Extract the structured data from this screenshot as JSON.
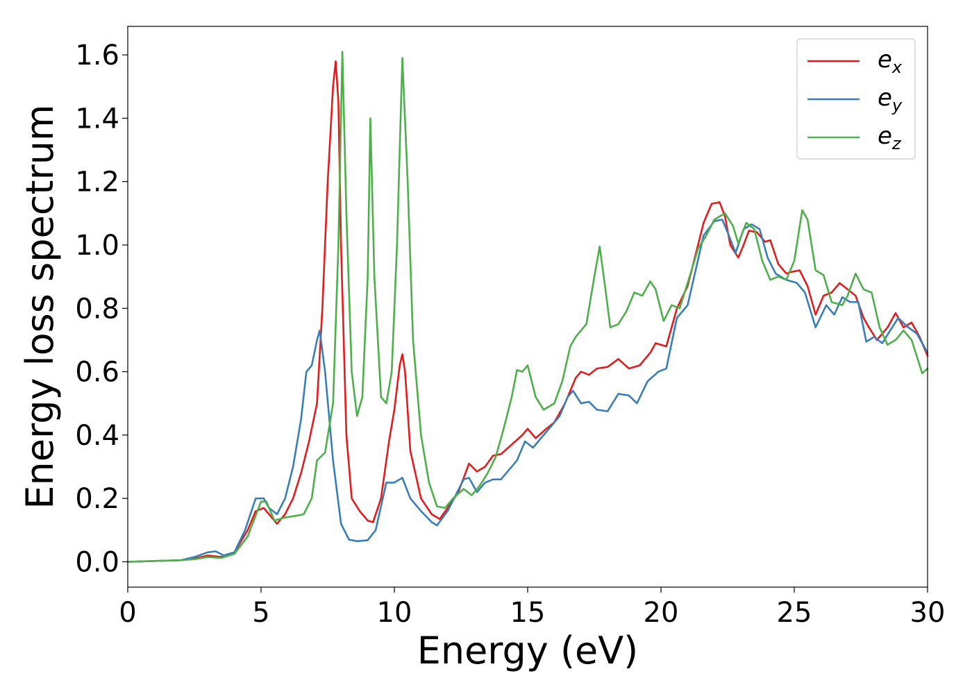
{
  "chart_data": {
    "type": "line",
    "title": "",
    "xlabel": "Energy (eV)",
    "ylabel": "Energy loss spectrum",
    "xlim": [
      0,
      30
    ],
    "ylim": [
      -0.08,
      1.69
    ],
    "xticks": [
      0,
      5,
      10,
      15,
      20,
      25,
      30
    ],
    "xtick_labels": [
      "0",
      "5",
      "10",
      "15",
      "20",
      "25",
      "30"
    ],
    "yticks": [
      0.0,
      0.2,
      0.4,
      0.6,
      0.8,
      1.0,
      1.2,
      1.4,
      1.6
    ],
    "ytick_labels": [
      "0.0",
      "0.2",
      "0.4",
      "0.6",
      "0.8",
      "1.0",
      "1.2",
      "1.4",
      "1.6"
    ],
    "grid": false,
    "legend_position": "top-right",
    "series": [
      {
        "name": "e_x",
        "legend_base": "e",
        "legend_sub": "x",
        "color": "#e41a1c",
        "points": [
          [
            0,
            0
          ],
          [
            2,
            0.005
          ],
          [
            2.5,
            0.01
          ],
          [
            3,
            0.02
          ],
          [
            3.5,
            0.015
          ],
          [
            4,
            0.03
          ],
          [
            4.5,
            0.1
          ],
          [
            4.8,
            0.16
          ],
          [
            5.1,
            0.17
          ],
          [
            5.3,
            0.15
          ],
          [
            5.6,
            0.12
          ],
          [
            5.9,
            0.15
          ],
          [
            6.2,
            0.2
          ],
          [
            6.5,
            0.28
          ],
          [
            6.8,
            0.38
          ],
          [
            7.1,
            0.5
          ],
          [
            7.3,
            0.8
          ],
          [
            7.5,
            1.2
          ],
          [
            7.7,
            1.5
          ],
          [
            7.8,
            1.58
          ],
          [
            7.9,
            1.45
          ],
          [
            8.0,
            1.0
          ],
          [
            8.2,
            0.4
          ],
          [
            8.4,
            0.2
          ],
          [
            8.7,
            0.16
          ],
          [
            9.0,
            0.13
          ],
          [
            9.2,
            0.125
          ],
          [
            9.5,
            0.2
          ],
          [
            9.8,
            0.38
          ],
          [
            10.0,
            0.48
          ],
          [
            10.2,
            0.62
          ],
          [
            10.3,
            0.655
          ],
          [
            10.4,
            0.6
          ],
          [
            10.6,
            0.35
          ],
          [
            11.0,
            0.2
          ],
          [
            11.4,
            0.15
          ],
          [
            11.7,
            0.135
          ],
          [
            12.0,
            0.17
          ],
          [
            12.4,
            0.22
          ],
          [
            12.8,
            0.31
          ],
          [
            13.1,
            0.285
          ],
          [
            13.4,
            0.3
          ],
          [
            13.7,
            0.335
          ],
          [
            14.0,
            0.34
          ],
          [
            14.4,
            0.37
          ],
          [
            14.8,
            0.4
          ],
          [
            15.0,
            0.42
          ],
          [
            15.3,
            0.39
          ],
          [
            15.7,
            0.42
          ],
          [
            16.0,
            0.44
          ],
          [
            16.4,
            0.5
          ],
          [
            16.8,
            0.58
          ],
          [
            17.0,
            0.6
          ],
          [
            17.3,
            0.59
          ],
          [
            17.6,
            0.61
          ],
          [
            18.0,
            0.615
          ],
          [
            18.4,
            0.64
          ],
          [
            18.8,
            0.61
          ],
          [
            19.2,
            0.62
          ],
          [
            19.6,
            0.66
          ],
          [
            19.8,
            0.69
          ],
          [
            20.2,
            0.68
          ],
          [
            20.6,
            0.8
          ],
          [
            21.0,
            0.87
          ],
          [
            21.3,
            0.97
          ],
          [
            21.6,
            1.07
          ],
          [
            21.9,
            1.13
          ],
          [
            22.2,
            1.135
          ],
          [
            22.4,
            1.09
          ],
          [
            22.6,
            1.0
          ],
          [
            22.9,
            0.96
          ],
          [
            23.1,
            1.0
          ],
          [
            23.3,
            1.045
          ],
          [
            23.6,
            1.04
          ],
          [
            23.9,
            1.01
          ],
          [
            24.1,
            1.015
          ],
          [
            24.4,
            0.94
          ],
          [
            24.7,
            0.91
          ],
          [
            24.9,
            0.915
          ],
          [
            25.2,
            0.92
          ],
          [
            25.5,
            0.87
          ],
          [
            25.8,
            0.78
          ],
          [
            26.1,
            0.84
          ],
          [
            26.4,
            0.85
          ],
          [
            26.7,
            0.88
          ],
          [
            27.0,
            0.86
          ],
          [
            27.3,
            0.84
          ],
          [
            27.6,
            0.77
          ],
          [
            27.8,
            0.74
          ],
          [
            28.1,
            0.7
          ],
          [
            28.5,
            0.74
          ],
          [
            28.8,
            0.785
          ],
          [
            29.1,
            0.74
          ],
          [
            29.4,
            0.755
          ],
          [
            29.7,
            0.71
          ],
          [
            30.0,
            0.65
          ]
        ]
      },
      {
        "name": "e_y",
        "legend_base": "e",
        "legend_sub": "y",
        "color": "#377eb8",
        "points": [
          [
            0,
            0
          ],
          [
            2,
            0.005
          ],
          [
            2.5,
            0.015
          ],
          [
            3.0,
            0.03
          ],
          [
            3.3,
            0.033
          ],
          [
            3.6,
            0.02
          ],
          [
            4.0,
            0.03
          ],
          [
            4.4,
            0.1
          ],
          [
            4.8,
            0.2
          ],
          [
            5.1,
            0.2
          ],
          [
            5.3,
            0.17
          ],
          [
            5.6,
            0.15
          ],
          [
            5.9,
            0.2
          ],
          [
            6.2,
            0.3
          ],
          [
            6.5,
            0.45
          ],
          [
            6.7,
            0.6
          ],
          [
            6.9,
            0.62
          ],
          [
            7.1,
            0.7
          ],
          [
            7.2,
            0.73
          ],
          [
            7.4,
            0.6
          ],
          [
            7.7,
            0.32
          ],
          [
            8.0,
            0.12
          ],
          [
            8.3,
            0.07
          ],
          [
            8.6,
            0.065
          ],
          [
            9.0,
            0.068
          ],
          [
            9.3,
            0.1
          ],
          [
            9.7,
            0.25
          ],
          [
            10.0,
            0.25
          ],
          [
            10.3,
            0.265
          ],
          [
            10.6,
            0.2
          ],
          [
            11.0,
            0.16
          ],
          [
            11.4,
            0.125
          ],
          [
            11.6,
            0.115
          ],
          [
            12.0,
            0.16
          ],
          [
            12.3,
            0.21
          ],
          [
            12.6,
            0.26
          ],
          [
            12.8,
            0.265
          ],
          [
            13.1,
            0.22
          ],
          [
            13.4,
            0.25
          ],
          [
            13.7,
            0.26
          ],
          [
            14.0,
            0.26
          ],
          [
            14.3,
            0.29
          ],
          [
            14.6,
            0.32
          ],
          [
            14.9,
            0.38
          ],
          [
            15.2,
            0.36
          ],
          [
            15.5,
            0.39
          ],
          [
            15.8,
            0.42
          ],
          [
            16.2,
            0.46
          ],
          [
            16.5,
            0.52
          ],
          [
            16.7,
            0.54
          ],
          [
            17.0,
            0.5
          ],
          [
            17.3,
            0.505
          ],
          [
            17.6,
            0.48
          ],
          [
            18.0,
            0.475
          ],
          [
            18.4,
            0.53
          ],
          [
            18.8,
            0.525
          ],
          [
            19.1,
            0.5
          ],
          [
            19.5,
            0.57
          ],
          [
            19.9,
            0.6
          ],
          [
            20.2,
            0.61
          ],
          [
            20.6,
            0.77
          ],
          [
            21.0,
            0.81
          ],
          [
            21.3,
            0.92
          ],
          [
            21.6,
            1.03
          ],
          [
            22.0,
            1.075
          ],
          [
            22.3,
            1.08
          ],
          [
            22.5,
            1.04
          ],
          [
            22.8,
            0.975
          ],
          [
            23.1,
            1.05
          ],
          [
            23.4,
            1.065
          ],
          [
            23.7,
            1.05
          ],
          [
            24.0,
            0.96
          ],
          [
            24.3,
            0.91
          ],
          [
            24.7,
            0.89
          ],
          [
            25.1,
            0.88
          ],
          [
            25.4,
            0.85
          ],
          [
            25.8,
            0.74
          ],
          [
            26.2,
            0.81
          ],
          [
            26.5,
            0.78
          ],
          [
            26.8,
            0.835
          ],
          [
            27.1,
            0.82
          ],
          [
            27.4,
            0.82
          ],
          [
            27.7,
            0.695
          ],
          [
            28.0,
            0.71
          ],
          [
            28.3,
            0.69
          ],
          [
            28.6,
            0.73
          ],
          [
            28.9,
            0.77
          ],
          [
            29.2,
            0.745
          ],
          [
            29.6,
            0.72
          ],
          [
            30.0,
            0.66
          ]
        ]
      },
      {
        "name": "e_z",
        "legend_base": "e",
        "legend_sub": "z",
        "color": "#4daf4a",
        "points": [
          [
            0,
            0
          ],
          [
            2,
            0.005
          ],
          [
            2.5,
            0.008
          ],
          [
            3,
            0.015
          ],
          [
            3.5,
            0.012
          ],
          [
            4.0,
            0.025
          ],
          [
            4.5,
            0.08
          ],
          [
            5.0,
            0.19
          ],
          [
            5.2,
            0.19
          ],
          [
            5.5,
            0.13
          ],
          [
            5.9,
            0.14
          ],
          [
            6.3,
            0.145
          ],
          [
            6.6,
            0.15
          ],
          [
            6.9,
            0.2
          ],
          [
            7.1,
            0.32
          ],
          [
            7.4,
            0.345
          ],
          [
            7.7,
            0.5
          ],
          [
            7.9,
            1.0
          ],
          [
            8.05,
            1.61
          ],
          [
            8.2,
            1.1
          ],
          [
            8.4,
            0.6
          ],
          [
            8.6,
            0.46
          ],
          [
            8.8,
            0.52
          ],
          [
            9.0,
            0.9
          ],
          [
            9.1,
            1.4
          ],
          [
            9.25,
            0.9
          ],
          [
            9.5,
            0.52
          ],
          [
            9.7,
            0.5
          ],
          [
            9.9,
            0.6
          ],
          [
            10.1,
            1.0
          ],
          [
            10.3,
            1.59
          ],
          [
            10.5,
            1.2
          ],
          [
            10.7,
            0.7
          ],
          [
            11.0,
            0.4
          ],
          [
            11.3,
            0.25
          ],
          [
            11.6,
            0.175
          ],
          [
            11.9,
            0.17
          ],
          [
            12.2,
            0.2
          ],
          [
            12.6,
            0.23
          ],
          [
            12.9,
            0.21
          ],
          [
            13.2,
            0.24
          ],
          [
            13.5,
            0.28
          ],
          [
            13.8,
            0.33
          ],
          [
            14.1,
            0.42
          ],
          [
            14.4,
            0.52
          ],
          [
            14.6,
            0.605
          ],
          [
            14.8,
            0.6
          ],
          [
            15.0,
            0.62
          ],
          [
            15.3,
            0.52
          ],
          [
            15.6,
            0.48
          ],
          [
            16.0,
            0.5
          ],
          [
            16.3,
            0.57
          ],
          [
            16.6,
            0.68
          ],
          [
            16.8,
            0.71
          ],
          [
            17.2,
            0.75
          ],
          [
            17.5,
            0.9
          ],
          [
            17.7,
            0.995
          ],
          [
            17.9,
            0.87
          ],
          [
            18.1,
            0.74
          ],
          [
            18.4,
            0.75
          ],
          [
            18.7,
            0.79
          ],
          [
            19.0,
            0.85
          ],
          [
            19.3,
            0.84
          ],
          [
            19.6,
            0.885
          ],
          [
            19.8,
            0.86
          ],
          [
            20.1,
            0.76
          ],
          [
            20.4,
            0.81
          ],
          [
            20.7,
            0.8
          ],
          [
            21.0,
            0.88
          ],
          [
            21.4,
            0.99
          ],
          [
            21.7,
            1.03
          ],
          [
            22.0,
            1.08
          ],
          [
            22.4,
            1.1
          ],
          [
            22.7,
            1.06
          ],
          [
            22.9,
            1.005
          ],
          [
            23.2,
            1.07
          ],
          [
            23.5,
            1.05
          ],
          [
            23.8,
            0.95
          ],
          [
            24.1,
            0.89
          ],
          [
            24.4,
            0.9
          ],
          [
            24.7,
            0.89
          ],
          [
            25.0,
            0.95
          ],
          [
            25.3,
            1.11
          ],
          [
            25.5,
            1.08
          ],
          [
            25.8,
            0.92
          ],
          [
            26.1,
            0.905
          ],
          [
            26.4,
            0.82
          ],
          [
            26.8,
            0.81
          ],
          [
            27.0,
            0.84
          ],
          [
            27.3,
            0.91
          ],
          [
            27.6,
            0.86
          ],
          [
            27.9,
            0.85
          ],
          [
            28.2,
            0.74
          ],
          [
            28.5,
            0.685
          ],
          [
            28.8,
            0.7
          ],
          [
            29.1,
            0.73
          ],
          [
            29.4,
            0.7
          ],
          [
            29.8,
            0.595
          ],
          [
            30.0,
            0.61
          ]
        ]
      }
    ]
  }
}
